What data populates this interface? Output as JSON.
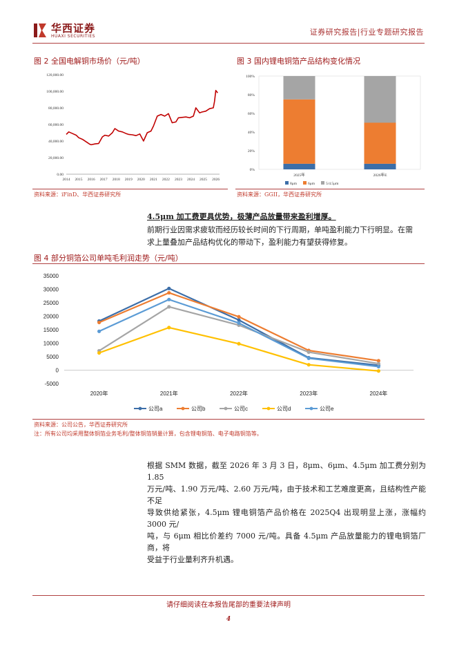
{
  "header": {
    "logo_cn": "华西证券",
    "logo_en": "HUAXI SECURITIES",
    "report_type": "证券研究报告|行业专题研究报告"
  },
  "figure2": {
    "title": "图 2 全国电解铜市场价（元/吨）",
    "source": "资料来源：iFinD、华西证券研究所",
    "chart_data": {
      "type": "line",
      "title": "全国电解铜市场价（元/吨）",
      "y_ticks": [
        "0.00",
        "20,000.00",
        "40,000.00",
        "60,000.00",
        "80,000.00",
        "100,000.00",
        "120,000.00"
      ],
      "x_ticks": [
        "2014",
        "2015",
        "2016",
        "2017",
        "2018",
        "2019",
        "2020",
        "2021",
        "2022",
        "2023",
        "2024",
        "2025",
        "2026"
      ],
      "ylim": [
        0,
        120000
      ],
      "series": [
        {
          "name": "电解铜",
          "x": [
            2014.0,
            2014.2,
            2014.5,
            2014.8,
            2015.0,
            2015.3,
            2015.6,
            2015.9,
            2016.0,
            2016.3,
            2016.6,
            2016.9,
            2017.1,
            2017.4,
            2017.7,
            2017.9,
            2018.2,
            2018.5,
            2018.8,
            2019.0,
            2019.3,
            2019.6,
            2019.9,
            2020.2,
            2020.5,
            2020.8,
            2021.0,
            2021.3,
            2021.6,
            2021.9,
            2022.2,
            2022.5,
            2022.8,
            2023.0,
            2023.3,
            2023.6,
            2023.9,
            2024.2,
            2024.4,
            2024.7,
            2024.9,
            2025.2,
            2025.5,
            2025.8,
            2025.9,
            2026.0,
            2026.15
          ],
          "values": [
            48000,
            51000,
            49000,
            47000,
            44000,
            42000,
            39000,
            36000,
            35500,
            36500,
            37000,
            45000,
            47000,
            46000,
            50000,
            55000,
            52000,
            51000,
            49000,
            48000,
            47500,
            46500,
            48500,
            40000,
            50000,
            52000,
            58000,
            70000,
            72000,
            70000,
            73000,
            62000,
            63000,
            68000,
            68500,
            69000,
            68000,
            70000,
            80000,
            74000,
            75000,
            76000,
            79000,
            80000,
            88000,
            101000,
            98000
          ]
        }
      ]
    }
  },
  "figure3": {
    "title": "图 3 国内锂电铜箔产品结构变化情况",
    "source": "资料来源：GGII，华西证券研究所",
    "chart_data": {
      "type": "bar",
      "stacked": true,
      "categories": [
        "2025年",
        "2026年E"
      ],
      "y_ticks": [
        "0%",
        "20%",
        "40%",
        "60%",
        "80%",
        "100%"
      ],
      "ylim": [
        0,
        100
      ],
      "series": [
        {
          "name": "8μm",
          "values": [
            6,
            6
          ],
          "color": "#3c6ea8"
        },
        {
          "name": "6μm",
          "values": [
            69,
            44
          ],
          "color": "#ed7d31"
        },
        {
          "name": "5/4.5μm",
          "values": [
            25,
            50
          ],
          "color": "#a5a5a5"
        }
      ]
    }
  },
  "section": {
    "heading": "4.5μm 加工费更具优势，极薄产品放量带来盈利增厚。",
    "paragraph1_line1": "前期行业因需求疲软而经历较长时间的下行周期，单吨盈利能力下行明显。在需",
    "paragraph1_line2": "求上量叠加产品结构优化的带动下，盈利能力有望获得修复。"
  },
  "figure4": {
    "title": "图 4 部分铜箔公司单吨毛利润走势（元/吨）",
    "source": "资料来源：公司公告，华西证券研究所",
    "note": "注：所有公司均采用整体铜箔业务毛利/整体铜箔销量计算，包含锂电铜箔、电子电路铜箔等。",
    "chart_data": {
      "type": "line",
      "categories": [
        "2020年",
        "2021年",
        "2022年",
        "2023年",
        "2024年"
      ],
      "y_ticks": [
        "-5000",
        "0",
        "5000",
        "10000",
        "15000",
        "20000",
        "25000",
        "30000",
        "35000"
      ],
      "ylim": [
        -5000,
        35000
      ],
      "series": [
        {
          "name": "公司a",
          "values": [
            18200,
            30300,
            18600,
            4600,
            1800
          ],
          "color": "#3c6ea8"
        },
        {
          "name": "公司b",
          "values": [
            17700,
            28700,
            19800,
            7300,
            3500
          ],
          "color": "#ed7d31"
        },
        {
          "name": "公司c",
          "values": [
            7200,
            23500,
            16700,
            6700,
            2400
          ],
          "color": "#a5a5a5"
        },
        {
          "name": "公司d",
          "values": [
            6400,
            15800,
            9800,
            2000,
            -300
          ],
          "color": "#ffc000"
        },
        {
          "name": "公司e",
          "values": [
            14400,
            26200,
            17500,
            4400,
            1300
          ],
          "color": "#5b9bd5"
        }
      ]
    }
  },
  "body2": {
    "line1": "根据 SMM 数据，截至 2026 年 3 月 3 日，8μm、6μm、4.5μm 加工费分别为 1.85",
    "line2": "万元/吨、1.90 万元/吨、2.60 万元/吨，由于技术和工艺难度更高，且结构性产能不足",
    "line3": "导致供给紧张，4.5μm 锂电铜箔产品价格在 2025Q4 出现明显上涨，涨幅约 3000 元/",
    "line4": "吨，与 6μm 相比价差约 7000 元/吨。具备 4.5μm 产品放量能力的锂电铜箔厂商，将",
    "line5": "受益于行业量利齐升机遇。"
  },
  "footer": {
    "disclaimer": "请仔细阅读在本报告尾部的重要法律声明",
    "page": "4"
  }
}
